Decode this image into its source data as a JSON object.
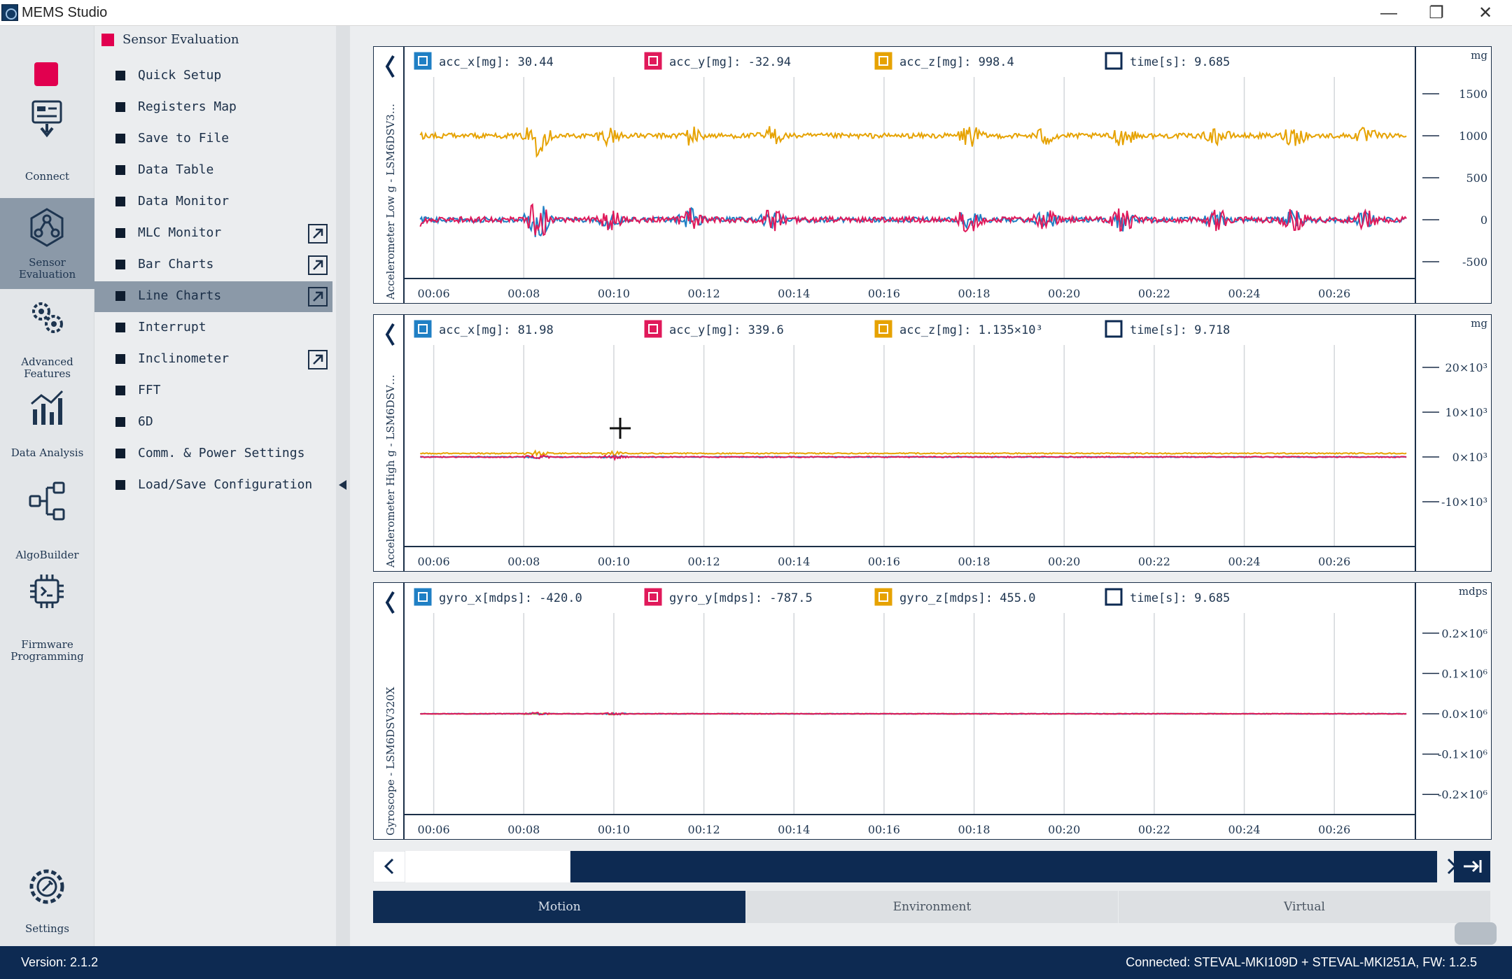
{
  "window": {
    "title": "MEMS Studio",
    "minimize": "—",
    "restore": "❐",
    "close": "✕"
  },
  "leftbar": {
    "items": [
      {
        "id": "connect",
        "label": "Connect",
        "icon": "connect-icon"
      },
      {
        "id": "sensor-evaluation",
        "label": "Sensor Evaluation",
        "icon": "sensor-evaluation-icon",
        "active": true
      },
      {
        "id": "advanced-features",
        "label": "Advanced Features",
        "icon": "gears-icon"
      },
      {
        "id": "data-analysis",
        "label": "Data Analysis",
        "icon": "data-analysis-icon"
      },
      {
        "id": "algobuilder",
        "label": "AlgoBuilder",
        "icon": "algobuilder-icon"
      },
      {
        "id": "firmware-programming",
        "label": "Firmware Programming",
        "icon": "chip-icon"
      }
    ],
    "settings_label": "Settings",
    "active_color": "#e1004f"
  },
  "submenu": {
    "header": "Sensor Evaluation",
    "items": [
      {
        "label": "Quick Setup",
        "external": false
      },
      {
        "label": "Registers Map",
        "external": false
      },
      {
        "label": "Save to File",
        "external": false
      },
      {
        "label": "Data Table",
        "external": false
      },
      {
        "label": "Data Monitor",
        "external": false
      },
      {
        "label": "MLC Monitor",
        "external": true
      },
      {
        "label": "Bar Charts",
        "external": true
      },
      {
        "label": "Line Charts",
        "external": true,
        "selected": true
      },
      {
        "label": "Interrupt",
        "external": false
      },
      {
        "label": "Inclinometer",
        "external": true
      },
      {
        "label": "FFT",
        "external": false
      },
      {
        "label": "6D",
        "external": false
      },
      {
        "label": "Comm. & Power Settings",
        "external": false
      },
      {
        "label": "Load/Save Configuration",
        "external": false
      }
    ]
  },
  "colors": {
    "x": "#1f7fc4",
    "y": "#e0195a",
    "z": "#e6a200",
    "time": "#0d2a52",
    "navy": "#0d2a52"
  },
  "chart_data": [
    {
      "type": "line",
      "side_label": "Accelerometer Low g - LSM6DSV3…",
      "unit": "mg",
      "legend": [
        {
          "series": "x",
          "text": "acc_x[mg]: 30.44"
        },
        {
          "series": "y",
          "text": "acc_y[mg]: -32.94"
        },
        {
          "series": "z",
          "text": "acc_z[mg]: 998.4"
        },
        {
          "series": "time",
          "text": "time[s]: 9.685"
        }
      ],
      "x_ticks": [
        "00:06",
        "00:08",
        "00:10",
        "00:12",
        "00:14",
        "00:16",
        "00:18",
        "00:20",
        "00:22",
        "00:24",
        "00:26"
      ],
      "y_ticks": [
        "1500",
        "1000",
        "500",
        "0",
        "-500"
      ],
      "y_tick_values": [
        1500,
        1000,
        500,
        0,
        -500
      ],
      "ylim": [
        -700,
        1700
      ],
      "series": [
        {
          "name": "acc_x[mg]",
          "key": "x",
          "baseline": 0,
          "noise": 30
        },
        {
          "name": "acc_y[mg]",
          "key": "y",
          "baseline": 0,
          "noise": 35
        },
        {
          "name": "acc_z[mg]",
          "key": "z",
          "baseline": 1000,
          "noise": 30
        }
      ],
      "bursts": [
        [
          "00:05.5",
          1.6
        ],
        [
          "00:08.3",
          3.5
        ],
        [
          "00:09.9",
          1.5
        ],
        [
          "00:11.7",
          1.8
        ],
        [
          "00:13.5",
          1.7
        ],
        [
          "00:17.9",
          2.0
        ],
        [
          "00:19.6",
          1.5
        ],
        [
          "00:21.3",
          1.8
        ],
        [
          "00:23.4",
          1.4
        ],
        [
          "00:25.1",
          1.8
        ],
        [
          "00:26.7",
          1.3
        ]
      ]
    },
    {
      "type": "line",
      "side_label": "Accelerometer High g - LSM6DSV…",
      "unit": "mg",
      "legend": [
        {
          "series": "x",
          "text": "acc_x[mg]: 81.98"
        },
        {
          "series": "y",
          "text": "acc_y[mg]: 339.6"
        },
        {
          "series": "z",
          "text": "acc_z[mg]: 1.135×10³"
        },
        {
          "series": "time",
          "text": "time[s]: 9.718"
        }
      ],
      "x_ticks": [
        "00:06",
        "00:08",
        "00:10",
        "00:12",
        "00:14",
        "00:16",
        "00:18",
        "00:20",
        "00:22",
        "00:24",
        "00:26"
      ],
      "y_ticks": [
        "20×10³",
        "10×10³",
        "0×10³",
        "-10×10³"
      ],
      "y_tick_values": [
        20000,
        10000,
        0,
        -10000
      ],
      "ylim": [
        -20000,
        25000
      ],
      "series": [
        {
          "name": "acc_x[mg]",
          "key": "x",
          "baseline": 0,
          "noise": 80
        },
        {
          "name": "acc_y[mg]",
          "key": "y",
          "baseline": 0,
          "noise": 120
        },
        {
          "name": "acc_z[mg]",
          "key": "z",
          "baseline": 800,
          "noise": 120
        }
      ],
      "bursts": [
        [
          "00:08.3",
          1.8
        ],
        [
          "00:10.0",
          1.6
        ]
      ]
    },
    {
      "type": "line",
      "side_label": "Gyroscope - LSM6DSV320X",
      "unit": "mdps",
      "legend": [
        {
          "series": "x",
          "text": "gyro_x[mdps]: -420.0"
        },
        {
          "series": "y",
          "text": "gyro_y[mdps]: -787.5"
        },
        {
          "series": "z",
          "text": "gyro_z[mdps]: 455.0"
        },
        {
          "series": "time",
          "text": "time[s]: 9.685"
        }
      ],
      "x_ticks": [
        "00:06",
        "00:08",
        "00:10",
        "00:12",
        "00:14",
        "00:16",
        "00:18",
        "00:20",
        "00:22",
        "00:24",
        "00:26"
      ],
      "y_ticks": [
        "0.2×10⁶",
        "0.1×10⁶",
        "0.0×10⁶",
        "-0.1×10⁶",
        "-0.2×10⁶"
      ],
      "y_tick_values": [
        200000,
        100000,
        0,
        -100000,
        -200000
      ],
      "ylim": [
        -250000,
        250000
      ],
      "series": [
        {
          "name": "gyro_x[mdps]",
          "key": "x",
          "baseline": 0,
          "noise": 600
        },
        {
          "name": "gyro_y[mdps]",
          "key": "y",
          "baseline": 0,
          "noise": 800
        },
        {
          "name": "gyro_z[mdps]",
          "key": "z",
          "baseline": 0,
          "noise": 600
        }
      ],
      "bursts": [
        [
          "00:08.3",
          1.6
        ],
        [
          "00:10.0",
          1.4
        ]
      ]
    }
  ],
  "tabs": [
    {
      "label": "Motion",
      "active": true
    },
    {
      "label": "Environment",
      "active": false
    },
    {
      "label": "Virtual",
      "active": false
    }
  ],
  "scroll_window": {
    "start": 0.16,
    "end": 1.0
  },
  "status": {
    "version": "Version: 2.1.2",
    "connected": "Connected:   STEVAL-MKI109D + STEVAL-MKI251A, FW: 1.2.5"
  }
}
